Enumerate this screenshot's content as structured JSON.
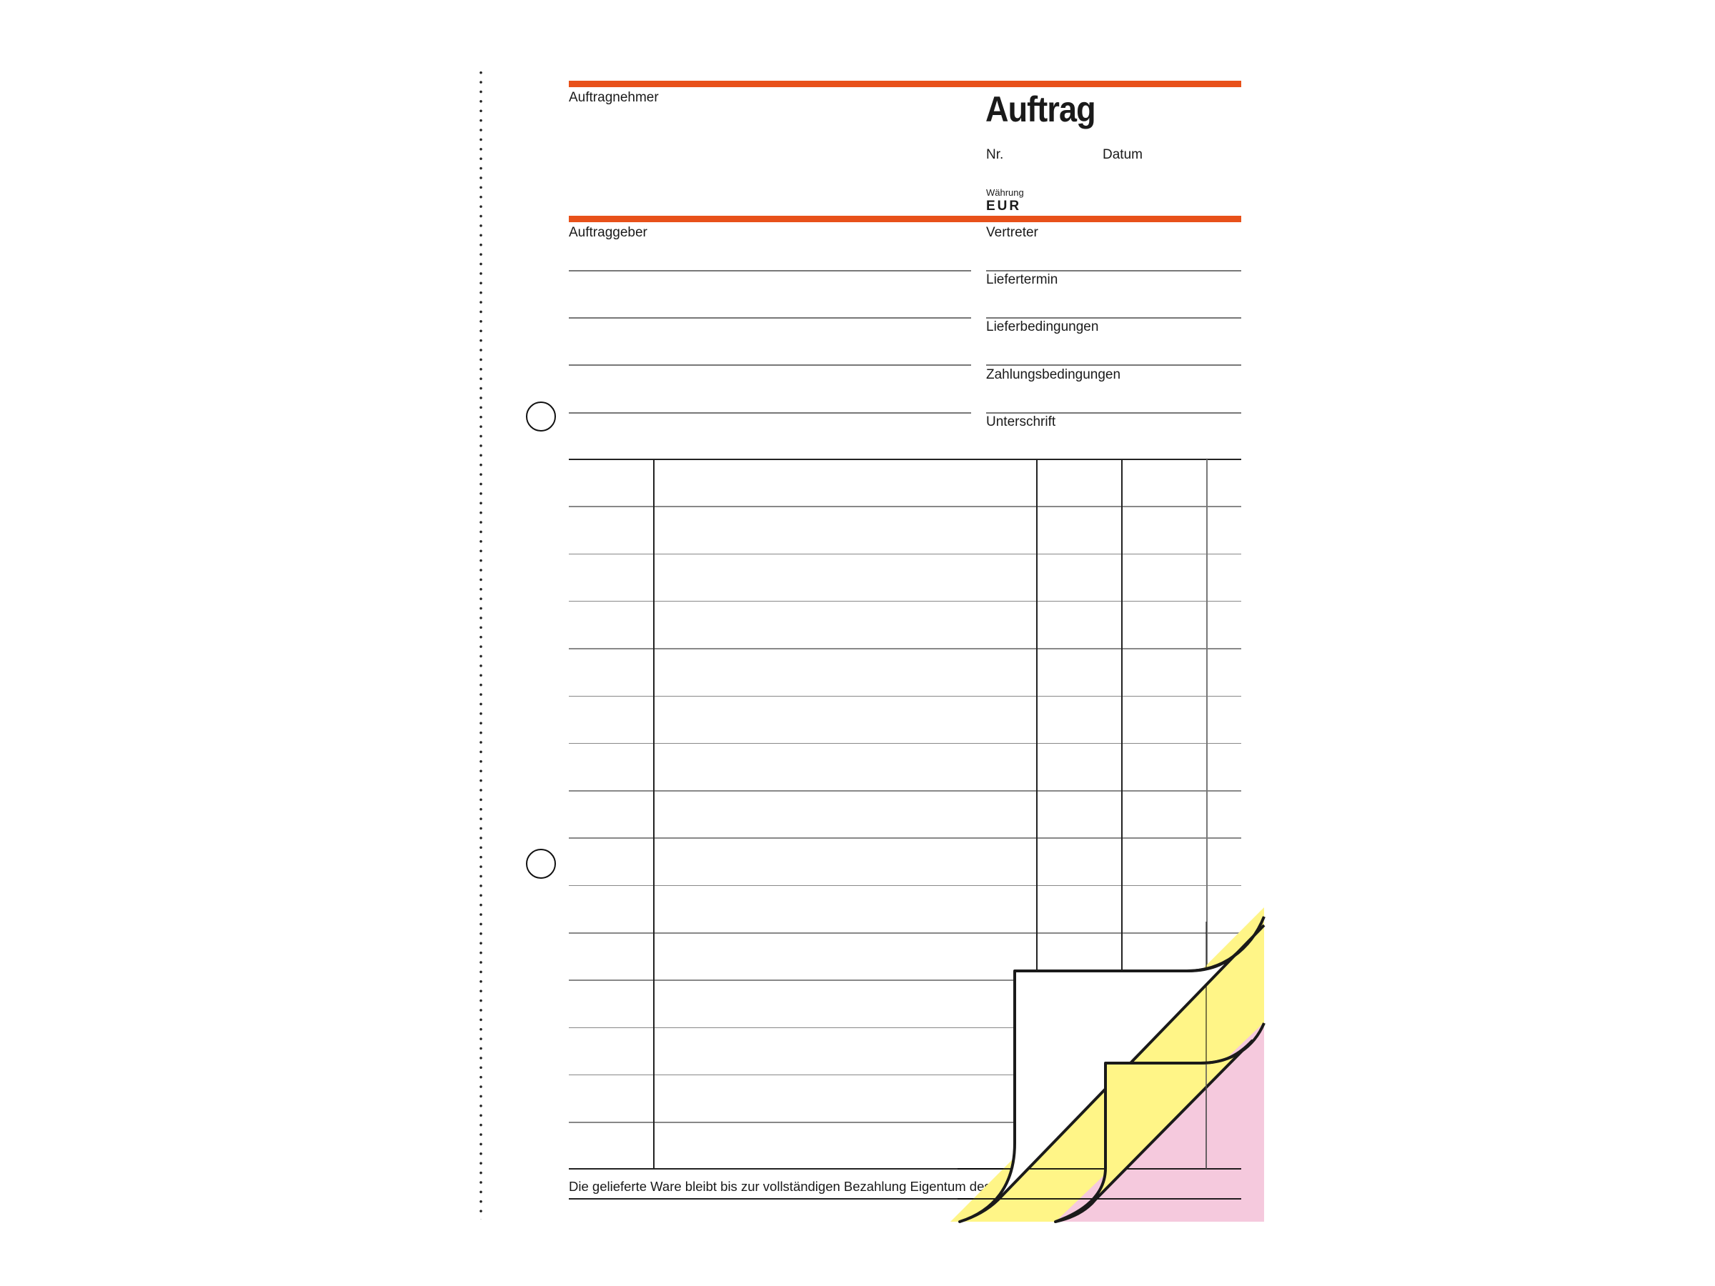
{
  "form": {
    "title": "Auftrag",
    "contractor_label": "Auftragnehmer",
    "number_label": "Nr.",
    "date_label": "Datum",
    "currency_label": "Währung",
    "currency_value": "EUR",
    "client_label": "Auftraggeber",
    "right_fields": [
      "Vertreter",
      "Liefertermin",
      "Lieferbedingungen",
      "Zahlungsbedingungen",
      "Unterschrift"
    ],
    "footer_note": "Die gelieferte Ware bleibt bis zur vollständigen Bezahlung Eigentum des Lieferanten."
  },
  "colors": {
    "accent": "#e8511a",
    "copy_yellow": "#fff587",
    "copy_pink": "#f5c9dd"
  }
}
